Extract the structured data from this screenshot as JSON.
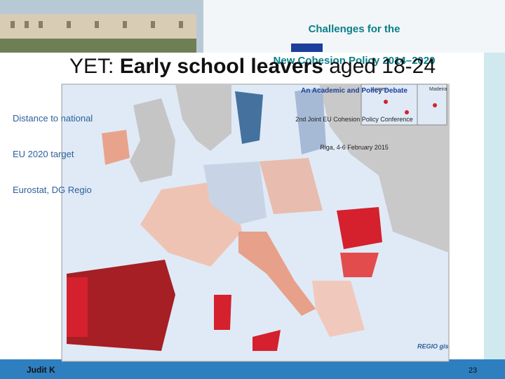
{
  "banner": {
    "line1": "Challenges for the",
    "line2": "New Cohesion Policy 2014–2020",
    "line3": "An Academic and Policy Debate",
    "line4": "2nd Joint EU Cohesion Policy Conference",
    "line5": "Riga, 4-6 February 2015"
  },
  "title": {
    "prefix": "YET:",
    "bold": "Early school leavers",
    "suffix": "aged 18-24"
  },
  "caption": [
    "Distance to national",
    "EU 2020 target",
    "Eurostat, DG Regio"
  ],
  "map": {
    "inset_labels": [
      "Açores",
      "Madeira"
    ],
    "credit": "REGIO gis"
  },
  "footer": {
    "author": "Judit K",
    "page": "23"
  }
}
